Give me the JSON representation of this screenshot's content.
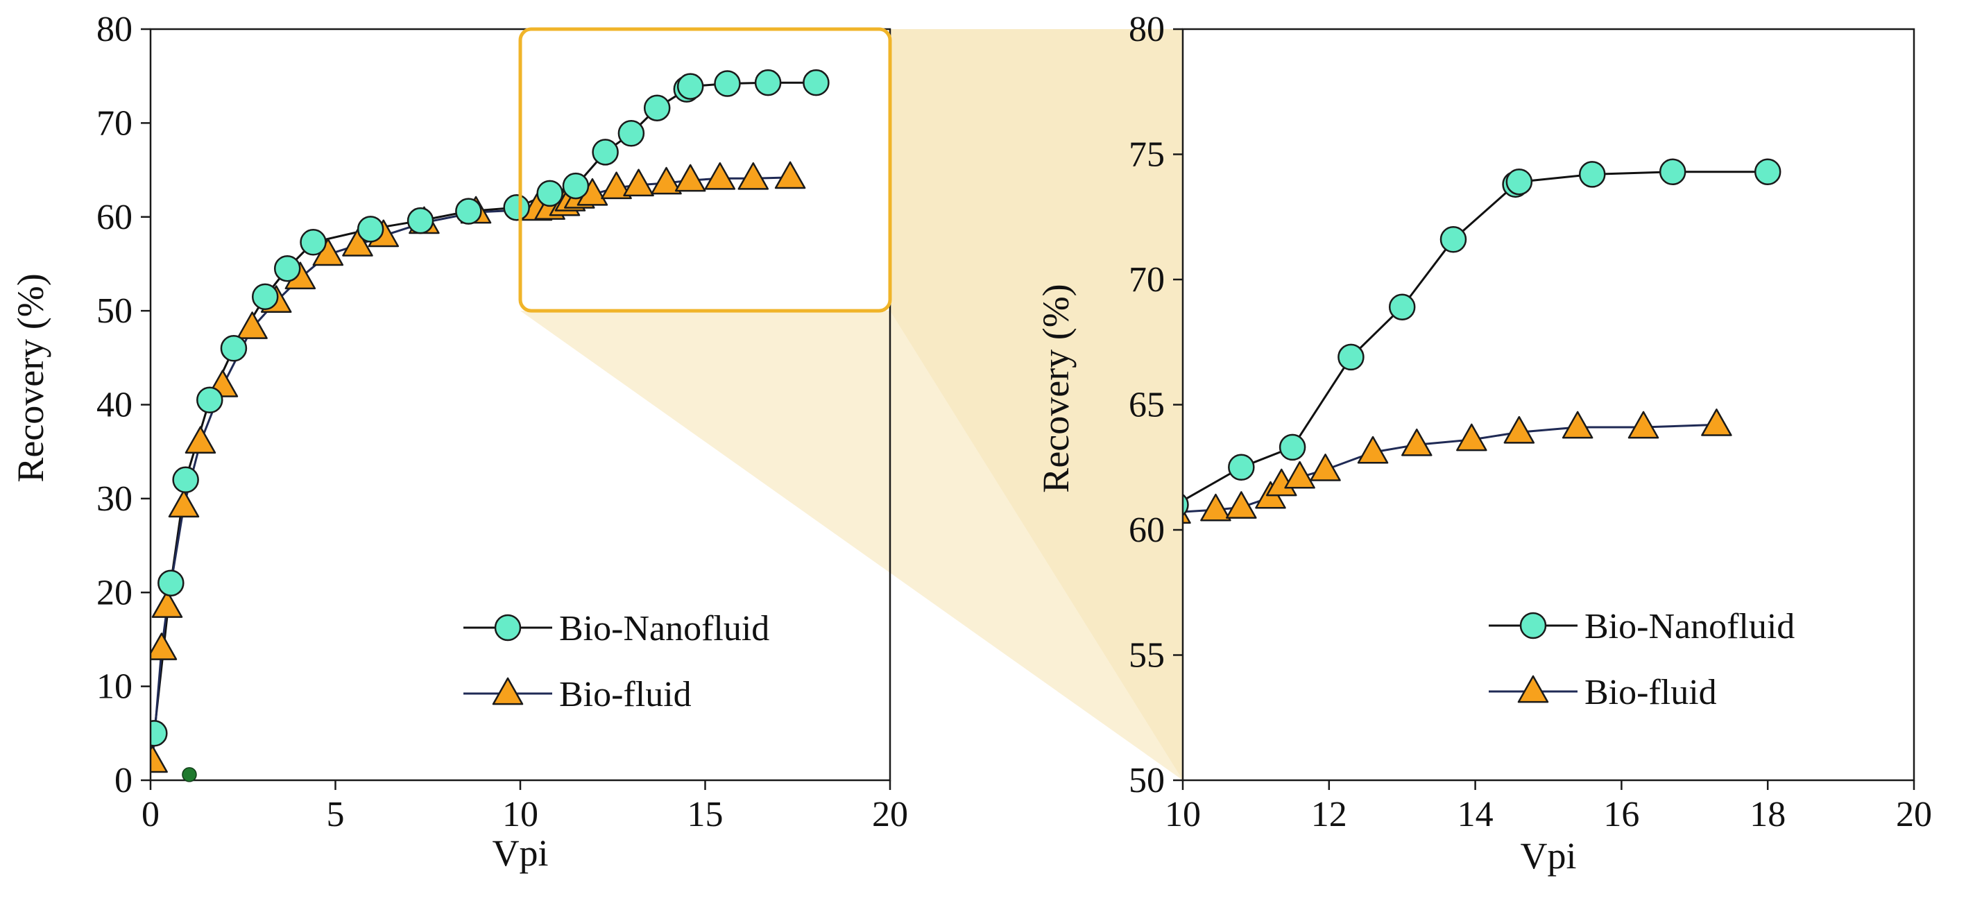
{
  "colors": {
    "nano_fill": "#66ecc8",
    "fluid_fill": "#f7a11c",
    "marker_stroke": "#1a1a1a",
    "nano_line": "#111111",
    "fluid_line": "#1f2a55",
    "zoom_box": "#f0b429",
    "zoom_fill": "#f6e3b2",
    "stray_dot": "#1f7a2e"
  },
  "chart_data": [
    {
      "type": "line",
      "panel": "left",
      "title": "",
      "xlabel": "Vpi",
      "ylabel": "Recovery (%)",
      "xlim": [
        0,
        20
      ],
      "ylim": [
        0,
        80
      ],
      "xticks": [
        "0",
        "5",
        "10",
        "15",
        "20"
      ],
      "yticks": [
        "0",
        "10",
        "20",
        "30",
        "40",
        "50",
        "60",
        "70",
        "80"
      ],
      "legend_position": "bottom-right",
      "series": [
        {
          "name": "Bio-Nanofluid",
          "marker": "circle",
          "x": [
            0.1,
            0.55,
            0.95,
            1.6,
            2.25,
            3.1,
            3.7,
            4.4,
            5.95,
            7.3,
            8.6,
            9.9,
            10.8,
            11.5,
            12.3,
            13.0,
            13.7,
            14.5,
            14.6,
            15.6,
            16.7,
            18.0
          ],
          "y": [
            5.0,
            21.0,
            32.0,
            40.5,
            46.0,
            51.5,
            54.5,
            57.3,
            58.7,
            59.6,
            60.6,
            61.0,
            62.5,
            63.3,
            66.9,
            68.9,
            71.6,
            73.6,
            73.9,
            74.2,
            74.3,
            74.3
          ]
        },
        {
          "name": "Bio-fluid",
          "marker": "triangle",
          "x": [
            0.05,
            0.3,
            0.45,
            0.9,
            1.35,
            1.95,
            2.75,
            3.4,
            4.05,
            4.8,
            5.6,
            6.3,
            7.4,
            8.8,
            10.45,
            10.8,
            11.2,
            11.35,
            11.6,
            11.95,
            12.6,
            13.2,
            13.95,
            14.6,
            15.4,
            16.3,
            17.3
          ],
          "y": [
            2.0,
            14.0,
            18.5,
            29.2,
            36.0,
            42.0,
            48.2,
            51.0,
            53.5,
            56.0,
            57.0,
            58.0,
            59.4,
            60.5,
            60.8,
            60.9,
            61.3,
            61.8,
            62.1,
            62.4,
            63.1,
            63.4,
            63.6,
            63.9,
            64.1,
            64.1,
            64.2
          ]
        }
      ]
    },
    {
      "type": "line",
      "panel": "right",
      "title": "",
      "xlabel": "Vpi",
      "ylabel": "Recovery (%)",
      "xlim": [
        10,
        20
      ],
      "ylim": [
        50,
        80
      ],
      "xticks": [
        "10",
        "12",
        "14",
        "16",
        "18",
        "20"
      ],
      "yticks": [
        "50",
        "55",
        "60",
        "65",
        "70",
        "75",
        "80"
      ],
      "legend_position": "bottom-right",
      "series": [
        {
          "name": "Bio-Nanofluid",
          "marker": "circle",
          "x": [
            9.9,
            10.8,
            11.5,
            12.3,
            13.0,
            13.7,
            14.55,
            14.6,
            15.6,
            16.7,
            18.0
          ],
          "y": [
            61.0,
            62.5,
            63.3,
            66.9,
            68.9,
            71.6,
            73.8,
            73.9,
            74.2,
            74.3,
            74.3
          ]
        },
        {
          "name": "Bio-fluid",
          "marker": "triangle",
          "x": [
            9.9,
            10.45,
            10.8,
            11.2,
            11.35,
            11.6,
            11.95,
            12.6,
            13.2,
            13.95,
            14.6,
            15.4,
            16.3,
            17.3
          ],
          "y": [
            60.7,
            60.8,
            60.9,
            61.3,
            61.8,
            62.1,
            62.4,
            63.1,
            63.4,
            63.6,
            63.9,
            64.1,
            64.1,
            64.2
          ]
        }
      ]
    }
  ]
}
